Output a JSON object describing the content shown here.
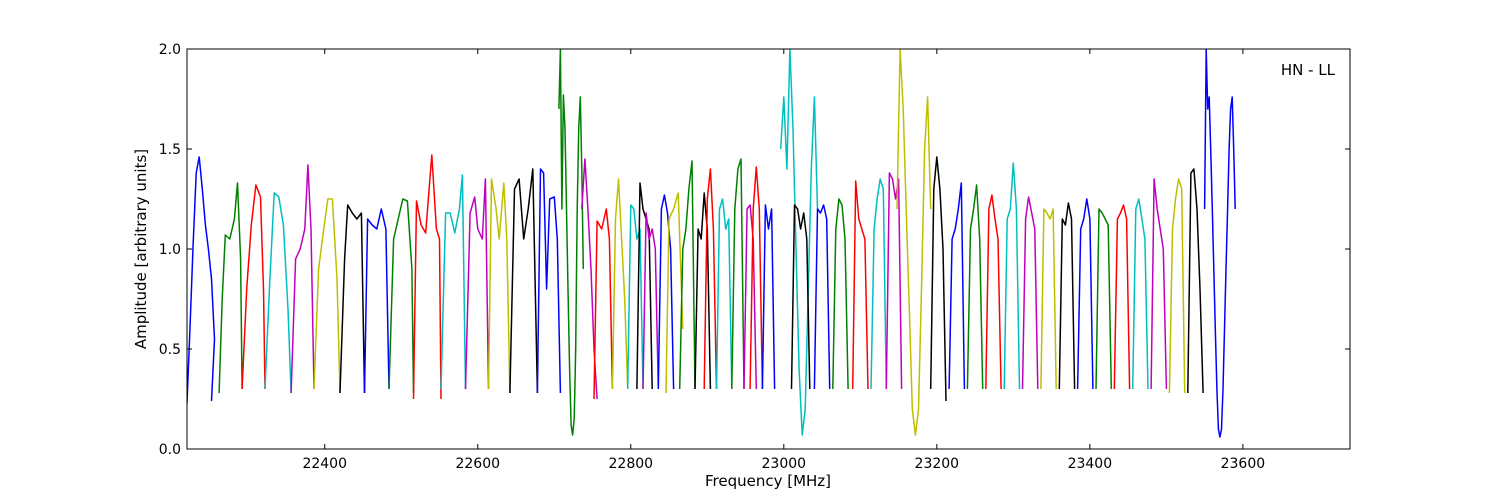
{
  "chart_data": {
    "type": "line",
    "xlabel": "Frequency [MHz]",
    "ylabel": "Amplitude [arbitrary units]",
    "annotation": "HN - LL",
    "annotation_placement": "top-right",
    "xlim": [
      22220,
      23740
    ],
    "ylim": [
      0.0,
      2.0
    ],
    "x_ticks": [
      22400,
      22600,
      22800,
      23000,
      23200,
      23400,
      23600
    ],
    "y_ticks": [
      0.0,
      0.5,
      1.0,
      1.5,
      2.0
    ],
    "x_tick_labels": [
      "22400",
      "22600",
      "22800",
      "23000",
      "23200",
      "23400",
      "23600"
    ],
    "y_tick_labels": [
      "0.0",
      "0.5",
      "1.0",
      "1.5",
      "2.0"
    ],
    "grid": false,
    "series_colors": [
      "#0000ff",
      "#008000",
      "#ff0000",
      "#00bfbf",
      "#bf00bf",
      "#bfbf00",
      "#000000"
    ],
    "series": [
      {
        "color": "#0000ff",
        "x": [
          22220,
          22224,
          22228,
          22232,
          22236,
          22240,
          22244,
          22248,
          22252,
          22256,
          22252
        ],
        "y": [
          0.23,
          0.62,
          1.02,
          1.38,
          1.46,
          1.3,
          1.12,
          1.0,
          0.85,
          0.55,
          0.24
        ]
      },
      {
        "color": "#008000",
        "x": [
          22262,
          22266,
          22270,
          22276,
          22282,
          22286,
          22290,
          22292
        ],
        "y": [
          0.28,
          0.75,
          1.07,
          1.05,
          1.15,
          1.33,
          0.95,
          0.3
        ]
      },
      {
        "color": "#ff0000",
        "x": [
          22292,
          22298,
          22304,
          22310,
          22316,
          22320,
          22322
        ],
        "y": [
          0.3,
          0.8,
          1.12,
          1.32,
          1.26,
          0.8,
          0.3
        ]
      },
      {
        "color": "#00bfbf",
        "x": [
          22322,
          22328,
          22334,
          22340,
          22346,
          22352,
          22356
        ],
        "y": [
          0.3,
          0.82,
          1.28,
          1.26,
          1.12,
          0.7,
          0.28
        ]
      },
      {
        "color": "#bf00bf",
        "x": [
          22356,
          22362,
          22368,
          22374,
          22378,
          22382,
          22386
        ],
        "y": [
          0.28,
          0.95,
          1.0,
          1.1,
          1.42,
          1.1,
          0.3
        ]
      },
      {
        "color": "#bfbf00",
        "x": [
          22386,
          22392,
          22398,
          22404,
          22410,
          22416,
          22420
        ],
        "y": [
          0.3,
          0.9,
          1.08,
          1.25,
          1.25,
          0.85,
          0.28
        ]
      },
      {
        "color": "#000000",
        "x": [
          22420,
          22426,
          22430,
          22436,
          22442,
          22448,
          22452
        ],
        "y": [
          0.28,
          0.95,
          1.22,
          1.18,
          1.15,
          1.18,
          0.28
        ]
      },
      {
        "color": "#0000ff",
        "x": [
          22452,
          22456,
          22462,
          22468,
          22474,
          22480,
          22484
        ],
        "y": [
          0.28,
          1.15,
          1.12,
          1.1,
          1.2,
          1.1,
          0.3
        ]
      },
      {
        "color": "#008000",
        "x": [
          22484,
          22490,
          22496,
          22502,
          22508,
          22514,
          22516
        ],
        "y": [
          0.3,
          1.05,
          1.15,
          1.25,
          1.24,
          0.9,
          0.28
        ]
      },
      {
        "color": "#ff0000",
        "x": [
          22516,
          22520,
          22526,
          22532,
          22536,
          22540,
          22546,
          22550,
          22552
        ],
        "y": [
          0.25,
          1.24,
          1.12,
          1.08,
          1.28,
          1.47,
          1.1,
          1.05,
          0.25
        ]
      },
      {
        "color": "#00bfbf",
        "x": [
          22552,
          22558,
          22564,
          22570,
          22576,
          22580,
          22584
        ],
        "y": [
          0.3,
          1.18,
          1.18,
          1.08,
          1.2,
          1.37,
          0.3
        ]
      },
      {
        "color": "#bf00bf",
        "x": [
          22584,
          22590,
          22596,
          22600,
          22606,
          22610,
          22614
        ],
        "y": [
          0.3,
          1.18,
          1.26,
          1.1,
          1.05,
          1.35,
          0.3
        ]
      },
      {
        "color": "#bfbf00",
        "x": [
          22614,
          22618,
          22624,
          22628,
          22634,
          22638,
          22642
        ],
        "y": [
          0.3,
          1.35,
          1.2,
          1.05,
          1.33,
          1.05,
          0.28
        ]
      },
      {
        "color": "#000000",
        "x": [
          22642,
          22648,
          22654,
          22660,
          22666,
          22672,
          22678
        ],
        "y": [
          0.28,
          1.3,
          1.35,
          1.05,
          1.2,
          1.4,
          0.28
        ]
      },
      {
        "color": "#0000ff",
        "x": [
          22678,
          22682,
          22686,
          22690,
          22694,
          22700,
          22704,
          22708
        ],
        "y": [
          0.28,
          1.4,
          1.38,
          0.8,
          1.25,
          1.26,
          1.05,
          0.28
        ]
      },
      {
        "color": "#008000",
        "x": [
          22706,
          22708,
          22710,
          22712,
          22714,
          22716,
          22718,
          22720,
          22722,
          22724,
          22726,
          22728,
          22730,
          22732,
          22734,
          22736,
          22738
        ],
        "y": [
          1.7,
          2.0,
          1.2,
          1.77,
          1.6,
          1.2,
          0.8,
          0.4,
          0.12,
          0.07,
          0.15,
          0.5,
          1.2,
          1.6,
          1.76,
          1.4,
          0.9
        ]
      },
      {
        "color": "#bf00bf",
        "x": [
          22736,
          22740,
          22744,
          22748,
          22752,
          22756
        ],
        "y": [
          1.2,
          1.45,
          1.2,
          0.9,
          0.5,
          0.25
        ]
      },
      {
        "color": "#ff0000",
        "x": [
          22752,
          22756,
          22762,
          22768,
          22772,
          22776
        ],
        "y": [
          0.25,
          1.14,
          1.1,
          1.2,
          1.05,
          0.3
        ]
      },
      {
        "color": "#bfbf00",
        "x": [
          22776,
          22780,
          22784,
          22788,
          22792,
          22796
        ],
        "y": [
          0.3,
          1.15,
          1.35,
          1.05,
          0.75,
          0.3
        ]
      },
      {
        "color": "#00bfbf",
        "x": [
          22796,
          22800,
          22804,
          22808,
          22812,
          22816
        ],
        "y": [
          0.3,
          1.22,
          1.2,
          1.05,
          1.1,
          0.3
        ]
      },
      {
        "color": "#000000",
        "x": [
          22808,
          22812,
          22816,
          22820,
          22824,
          22828
        ],
        "y": [
          0.3,
          1.33,
          1.2,
          1.15,
          1.1,
          0.3
        ]
      },
      {
        "color": "#bf00bf",
        "x": [
          22816,
          22820,
          22824,
          22828,
          22832,
          22836
        ],
        "y": [
          0.3,
          1.18,
          1.05,
          1.1,
          1.0,
          0.3
        ]
      },
      {
        "color": "#0000ff",
        "x": [
          22836,
          22840,
          22844,
          22848,
          22852,
          22856
        ],
        "y": [
          0.3,
          1.2,
          1.27,
          1.18,
          1.0,
          0.3
        ]
      },
      {
        "color": "#bfbf00",
        "x": [
          22846,
          22850,
          22856,
          22862,
          22868
        ],
        "y": [
          0.28,
          1.15,
          1.2,
          1.28,
          0.6
        ]
      },
      {
        "color": "#008000",
        "x": [
          22864,
          22868,
          22872,
          22876,
          22880,
          22884
        ],
        "y": [
          0.3,
          1.0,
          1.1,
          1.3,
          1.44,
          0.3
        ]
      },
      {
        "color": "#000000",
        "x": [
          22884,
          22888,
          22892,
          22896,
          22900,
          22904
        ],
        "y": [
          0.3,
          1.1,
          1.05,
          1.28,
          1.1,
          0.3
        ]
      },
      {
        "color": "#ff0000",
        "x": [
          22896,
          22900,
          22904,
          22908,
          22912
        ],
        "y": [
          0.3,
          1.25,
          1.4,
          1.1,
          0.3
        ]
      },
      {
        "color": "#00bfbf",
        "x": [
          22912,
          22916,
          22920,
          22924,
          22928,
          22932
        ],
        "y": [
          0.3,
          1.2,
          1.25,
          1.1,
          1.15,
          0.3
        ]
      },
      {
        "color": "#008000",
        "x": [
          22932,
          22936,
          22940,
          22944,
          22948
        ],
        "y": [
          0.3,
          1.2,
          1.4,
          1.45,
          0.3
        ]
      },
      {
        "color": "#bf00bf",
        "x": [
          22948,
          22952,
          22956,
          22960,
          22964
        ],
        "y": [
          0.3,
          1.2,
          1.22,
          1.05,
          0.3
        ]
      },
      {
        "color": "#ff0000",
        "x": [
          22956,
          22960,
          22964,
          22968,
          22972
        ],
        "y": [
          0.3,
          1.2,
          1.41,
          1.2,
          0.3
        ]
      },
      {
        "color": "#0000ff",
        "x": [
          22972,
          22976,
          22980,
          22984,
          22988
        ],
        "y": [
          0.3,
          1.22,
          1.1,
          1.2,
          0.3
        ]
      },
      {
        "color": "#00bfbf",
        "x": [
          22996,
          23000,
          23004,
          23008,
          23012,
          23016,
          23020,
          23024,
          23028,
          23032,
          23036,
          23040,
          23044
        ],
        "y": [
          1.5,
          1.76,
          1.4,
          2.0,
          1.6,
          1.0,
          0.4,
          0.07,
          0.2,
          0.8,
          1.4,
          1.76,
          1.2
        ]
      },
      {
        "color": "#000000",
        "x": [
          23010,
          23014,
          23018,
          23022,
          23026,
          23030,
          23034
        ],
        "y": [
          0.3,
          1.22,
          1.2,
          1.1,
          1.18,
          1.05,
          0.3
        ]
      },
      {
        "color": "#0000ff",
        "x": [
          23040,
          23044,
          23048,
          23052,
          23056,
          23060
        ],
        "y": [
          0.3,
          1.2,
          1.18,
          1.22,
          1.15,
          0.3
        ]
      },
      {
        "color": "#008000",
        "x": [
          23064,
          23068,
          23072,
          23076,
          23080,
          23084
        ],
        "y": [
          0.3,
          1.1,
          1.25,
          1.22,
          1.05,
          0.3
        ]
      },
      {
        "color": "#ff0000",
        "x": [
          23090,
          23094,
          23098,
          23102,
          23106,
          23110
        ],
        "y": [
          0.3,
          1.34,
          1.15,
          1.1,
          1.05,
          0.3
        ]
      },
      {
        "color": "#00bfbf",
        "x": [
          23114,
          23118,
          23122,
          23126,
          23130,
          23134
        ],
        "y": [
          0.3,
          1.1,
          1.25,
          1.35,
          1.3,
          0.3
        ]
      },
      {
        "color": "#bf00bf",
        "x": [
          23134,
          23138,
          23142,
          23146,
          23150,
          23154
        ],
        "y": [
          0.3,
          1.38,
          1.35,
          1.25,
          1.35,
          0.3
        ]
      },
      {
        "color": "#bfbf00",
        "x": [
          23148,
          23152,
          23156,
          23160,
          23164,
          23168,
          23172,
          23176,
          23180,
          23184,
          23188,
          23192
        ],
        "y": [
          1.2,
          2.0,
          1.7,
          1.2,
          0.7,
          0.2,
          0.07,
          0.2,
          0.8,
          1.5,
          1.76,
          1.2
        ]
      },
      {
        "color": "#000000",
        "x": [
          23192,
          23196,
          23200,
          23204,
          23208,
          23212
        ],
        "y": [
          0.3,
          1.3,
          1.46,
          1.3,
          1.0,
          0.24
        ]
      },
      {
        "color": "#0000ff",
        "x": [
          23216,
          23220,
          23224,
          23228,
          23232,
          23236
        ],
        "y": [
          0.3,
          1.05,
          1.1,
          1.2,
          1.33,
          0.3
        ]
      },
      {
        "color": "#008000",
        "x": [
          23240,
          23244,
          23248,
          23252,
          23256,
          23260
        ],
        "y": [
          0.3,
          1.1,
          1.2,
          1.32,
          1.05,
          0.3
        ]
      },
      {
        "color": "#ff0000",
        "x": [
          23264,
          23268,
          23272,
          23276,
          23280,
          23284
        ],
        "y": [
          0.3,
          1.2,
          1.27,
          1.15,
          1.05,
          0.3
        ]
      },
      {
        "color": "#00bfbf",
        "x": [
          23288,
          23292,
          23296,
          23300,
          23304,
          23308
        ],
        "y": [
          0.3,
          1.15,
          1.2,
          1.43,
          1.2,
          0.3
        ]
      },
      {
        "color": "#bf00bf",
        "x": [
          23312,
          23316,
          23320,
          23324,
          23328,
          23332
        ],
        "y": [
          0.3,
          1.15,
          1.26,
          1.18,
          1.1,
          0.3
        ]
      },
      {
        "color": "#bfbf00",
        "x": [
          23336,
          23340,
          23344,
          23348,
          23352,
          23356
        ],
        "y": [
          0.3,
          1.2,
          1.18,
          1.15,
          1.2,
          0.3
        ]
      },
      {
        "color": "#000000",
        "x": [
          23360,
          23364,
          23368,
          23372,
          23376,
          23380
        ],
        "y": [
          0.3,
          1.15,
          1.12,
          1.23,
          1.15,
          0.3
        ]
      },
      {
        "color": "#0000ff",
        "x": [
          23384,
          23388,
          23392,
          23396,
          23400,
          23404
        ],
        "y": [
          0.3,
          1.1,
          1.15,
          1.25,
          1.15,
          0.3
        ]
      },
      {
        "color": "#008000",
        "x": [
          23408,
          23412,
          23416,
          23420,
          23424,
          23428
        ],
        "y": [
          0.3,
          1.2,
          1.18,
          1.15,
          1.12,
          0.3
        ]
      },
      {
        "color": "#ff0000",
        "x": [
          23432,
          23436,
          23440,
          23444,
          23448,
          23452
        ],
        "y": [
          0.3,
          1.15,
          1.18,
          1.22,
          1.15,
          0.3
        ]
      },
      {
        "color": "#00bfbf",
        "x": [
          23456,
          23460,
          23464,
          23468,
          23472,
          23476
        ],
        "y": [
          0.3,
          1.2,
          1.25,
          1.15,
          1.05,
          0.3
        ]
      },
      {
        "color": "#bf00bf",
        "x": [
          23480,
          23484,
          23488,
          23492,
          23496,
          23500
        ],
        "y": [
          0.3,
          1.35,
          1.2,
          1.1,
          1.0,
          0.3
        ]
      },
      {
        "color": "#bfbf00",
        "x": [
          23504,
          23508,
          23512,
          23516,
          23520,
          23524
        ],
        "y": [
          0.28,
          1.1,
          1.25,
          1.35,
          1.3,
          0.28
        ]
      },
      {
        "color": "#000000",
        "x": [
          23528,
          23532,
          23536,
          23540,
          23544,
          23548
        ],
        "y": [
          0.28,
          1.38,
          1.4,
          1.2,
          0.8,
          0.28
        ]
      },
      {
        "color": "#0000ff",
        "x": [
          23550,
          23552,
          23554,
          23556,
          23558,
          23560,
          23562,
          23564,
          23566,
          23568,
          23570,
          23572,
          23574,
          23576,
          23578,
          23580,
          23582,
          23584,
          23586,
          23588,
          23590
        ],
        "y": [
          1.2,
          2.0,
          1.7,
          1.76,
          1.5,
          1.2,
          0.9,
          0.6,
          0.3,
          0.1,
          0.06,
          0.1,
          0.3,
          0.6,
          0.9,
          1.2,
          1.5,
          1.7,
          1.76,
          1.5,
          1.2
        ]
      }
    ]
  }
}
